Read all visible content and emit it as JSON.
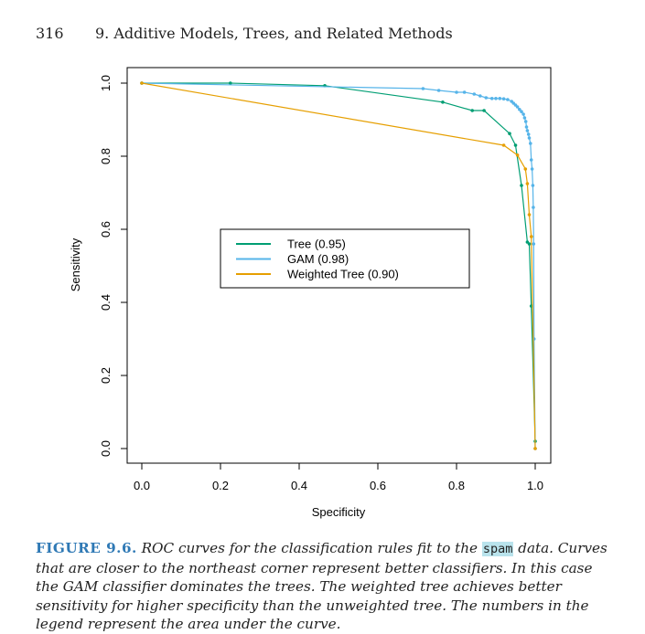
{
  "page": {
    "number": "316",
    "chapter": "9. Additive Models, Trees, and Related Methods"
  },
  "caption": {
    "label": "FIGURE 9.6.",
    "part1": "ROC curves for the classification rules fit to the",
    "code": "spam",
    "part2": "data. Curves that are closer to the northeast corner represent better classifiers. In this case the GAM classifier dominates the trees. The weighted tree achieves better sensitivity for higher specificity than the unweighted tree. The numbers in the legend represent the area under the curve."
  },
  "chart_data": {
    "type": "line",
    "xlabel": "Specificity",
    "ylabel": "Sensitivity",
    "xlim": [
      0,
      1
    ],
    "ylim": [
      0,
      1
    ],
    "xticks": [
      "0.0",
      "0.2",
      "0.4",
      "0.6",
      "0.8",
      "1.0"
    ],
    "yticks": [
      "0.0",
      "0.2",
      "0.4",
      "0.6",
      "0.8",
      "1.0"
    ],
    "grid": false,
    "legend_position": "center",
    "series": [
      {
        "name": "Tree (0.95)",
        "color": "#009e73",
        "points": [
          [
            0.0,
            1.0
          ],
          [
            0.225,
            1.0
          ],
          [
            0.465,
            0.993
          ],
          [
            0.765,
            0.948
          ],
          [
            0.84,
            0.925
          ],
          [
            0.87,
            0.925
          ],
          [
            0.935,
            0.862
          ],
          [
            0.95,
            0.83
          ],
          [
            0.965,
            0.72
          ],
          [
            0.98,
            0.565
          ],
          [
            0.985,
            0.56
          ],
          [
            0.99,
            0.39
          ],
          [
            1.0,
            0.02
          ]
        ]
      },
      {
        "name": "GAM (0.98)",
        "color": "#56b4e9",
        "points": [
          [
            0.0,
            1.0
          ],
          [
            0.715,
            0.985
          ],
          [
            0.755,
            0.98
          ],
          [
            0.8,
            0.975
          ],
          [
            0.82,
            0.975
          ],
          [
            0.845,
            0.97
          ],
          [
            0.86,
            0.965
          ],
          [
            0.875,
            0.96
          ],
          [
            0.89,
            0.958
          ],
          [
            0.9,
            0.958
          ],
          [
            0.91,
            0.958
          ],
          [
            0.92,
            0.957
          ],
          [
            0.93,
            0.955
          ],
          [
            0.94,
            0.95
          ],
          [
            0.945,
            0.945
          ],
          [
            0.95,
            0.94
          ],
          [
            0.955,
            0.935
          ],
          [
            0.96,
            0.928
          ],
          [
            0.965,
            0.922
          ],
          [
            0.97,
            0.915
          ],
          [
            0.973,
            0.905
          ],
          [
            0.976,
            0.895
          ],
          [
            0.978,
            0.88
          ],
          [
            0.98,
            0.87
          ],
          [
            0.983,
            0.86
          ],
          [
            0.985,
            0.85
          ],
          [
            0.988,
            0.835
          ],
          [
            0.99,
            0.79
          ],
          [
            0.992,
            0.765
          ],
          [
            0.994,
            0.72
          ],
          [
            0.995,
            0.66
          ],
          [
            0.996,
            0.56
          ],
          [
            0.997,
            0.3
          ],
          [
            1.0,
            0.0
          ]
        ]
      },
      {
        "name": "Weighted Tree (0.90)",
        "color": "#e69f00",
        "points": [
          [
            0.0,
            1.0
          ],
          [
            0.92,
            0.83
          ],
          [
            0.955,
            0.803
          ],
          [
            0.975,
            0.765
          ],
          [
            0.98,
            0.725
          ],
          [
            0.985,
            0.64
          ],
          [
            0.99,
            0.58
          ],
          [
            1.0,
            0.0
          ]
        ]
      }
    ]
  }
}
